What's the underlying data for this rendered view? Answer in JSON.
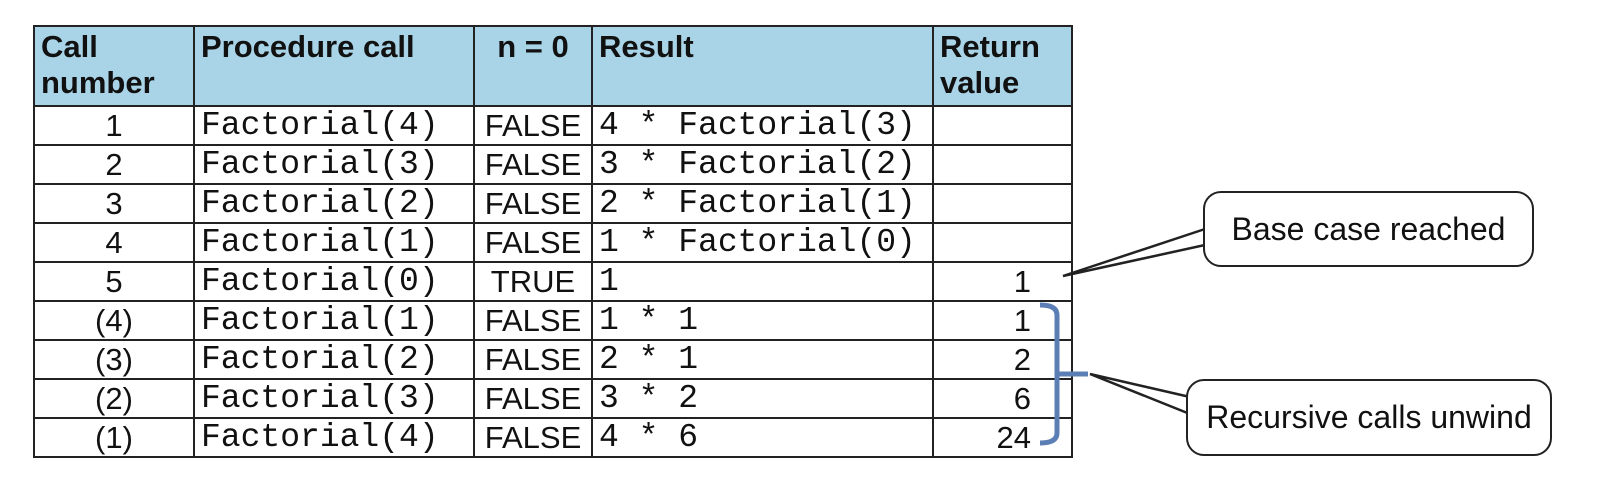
{
  "table": {
    "headers": [
      "Call number",
      "Procedure call",
      "n = 0",
      "Result",
      "Return value"
    ],
    "rows": [
      [
        "1",
        "Factorial(4)",
        "FALSE",
        "4 * Factorial(3)",
        null
      ],
      [
        "2",
        "Factorial(3)",
        "FALSE",
        "3 * Factorial(2)",
        null
      ],
      [
        "3",
        "Factorial(2)",
        "FALSE",
        "2 * Factorial(1)",
        null
      ],
      [
        "4",
        "Factorial(1)",
        "FALSE",
        "1 * Factorial(0)",
        null
      ],
      [
        "5",
        "Factorial(0)",
        "TRUE",
        "1",
        "1"
      ],
      [
        "(4)",
        "Factorial(1)",
        "FALSE",
        "1 * 1",
        "1"
      ],
      [
        "(3)",
        "Factorial(2)",
        "FALSE",
        "2 * 1",
        "2"
      ],
      [
        "(2)",
        "Factorial(3)",
        "FALSE",
        "3 * 2",
        "6"
      ],
      [
        "(1)",
        "Factorial(4)",
        "FALSE",
        "4 * 6",
        "24"
      ]
    ]
  },
  "callouts": [
    "Base case reached",
    "Recursive calls unwind"
  ]
}
